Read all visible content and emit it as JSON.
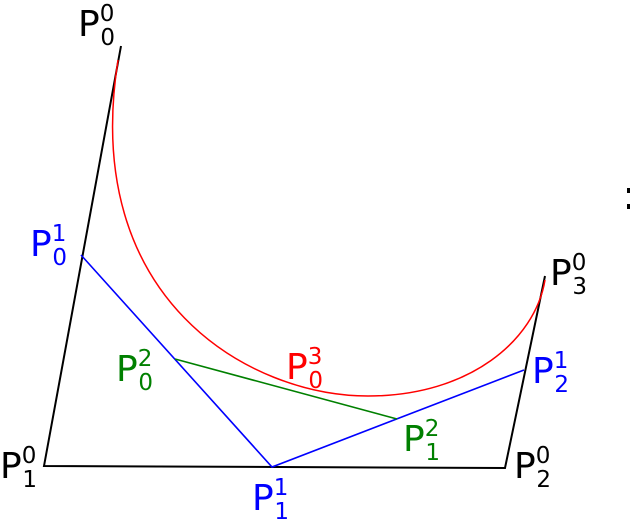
{
  "colors": {
    "control_polygon": "#000000",
    "level1": "#0000ff",
    "level2": "#008000",
    "curve": "#ff0000"
  },
  "labels": [
    {
      "id": "p00",
      "base": "P",
      "sup": "0",
      "sub": "0",
      "color": "#000000"
    },
    {
      "id": "p10",
      "base": "P",
      "sup": "0",
      "sub": "1",
      "color": "#000000"
    },
    {
      "id": "p20",
      "base": "P",
      "sup": "0",
      "sub": "2",
      "color": "#000000"
    },
    {
      "id": "p30",
      "base": "P",
      "sup": "0",
      "sub": "3",
      "color": "#000000"
    },
    {
      "id": "p01",
      "base": "P",
      "sup": "1",
      "sub": "0",
      "color": "#0000ff"
    },
    {
      "id": "p11",
      "base": "P",
      "sup": "1",
      "sub": "1",
      "color": "#0000ff"
    },
    {
      "id": "p21",
      "base": "P",
      "sup": "1",
      "sub": "2",
      "color": "#0000ff"
    },
    {
      "id": "p02",
      "base": "P",
      "sup": "2",
      "sub": "0",
      "color": "#008000"
    },
    {
      "id": "p12",
      "base": "P",
      "sup": "2",
      "sub": "1",
      "color": "#008000"
    },
    {
      "id": "p03",
      "base": "P",
      "sup": "3",
      "sub": "0",
      "color": "#ff0000"
    }
  ]
}
